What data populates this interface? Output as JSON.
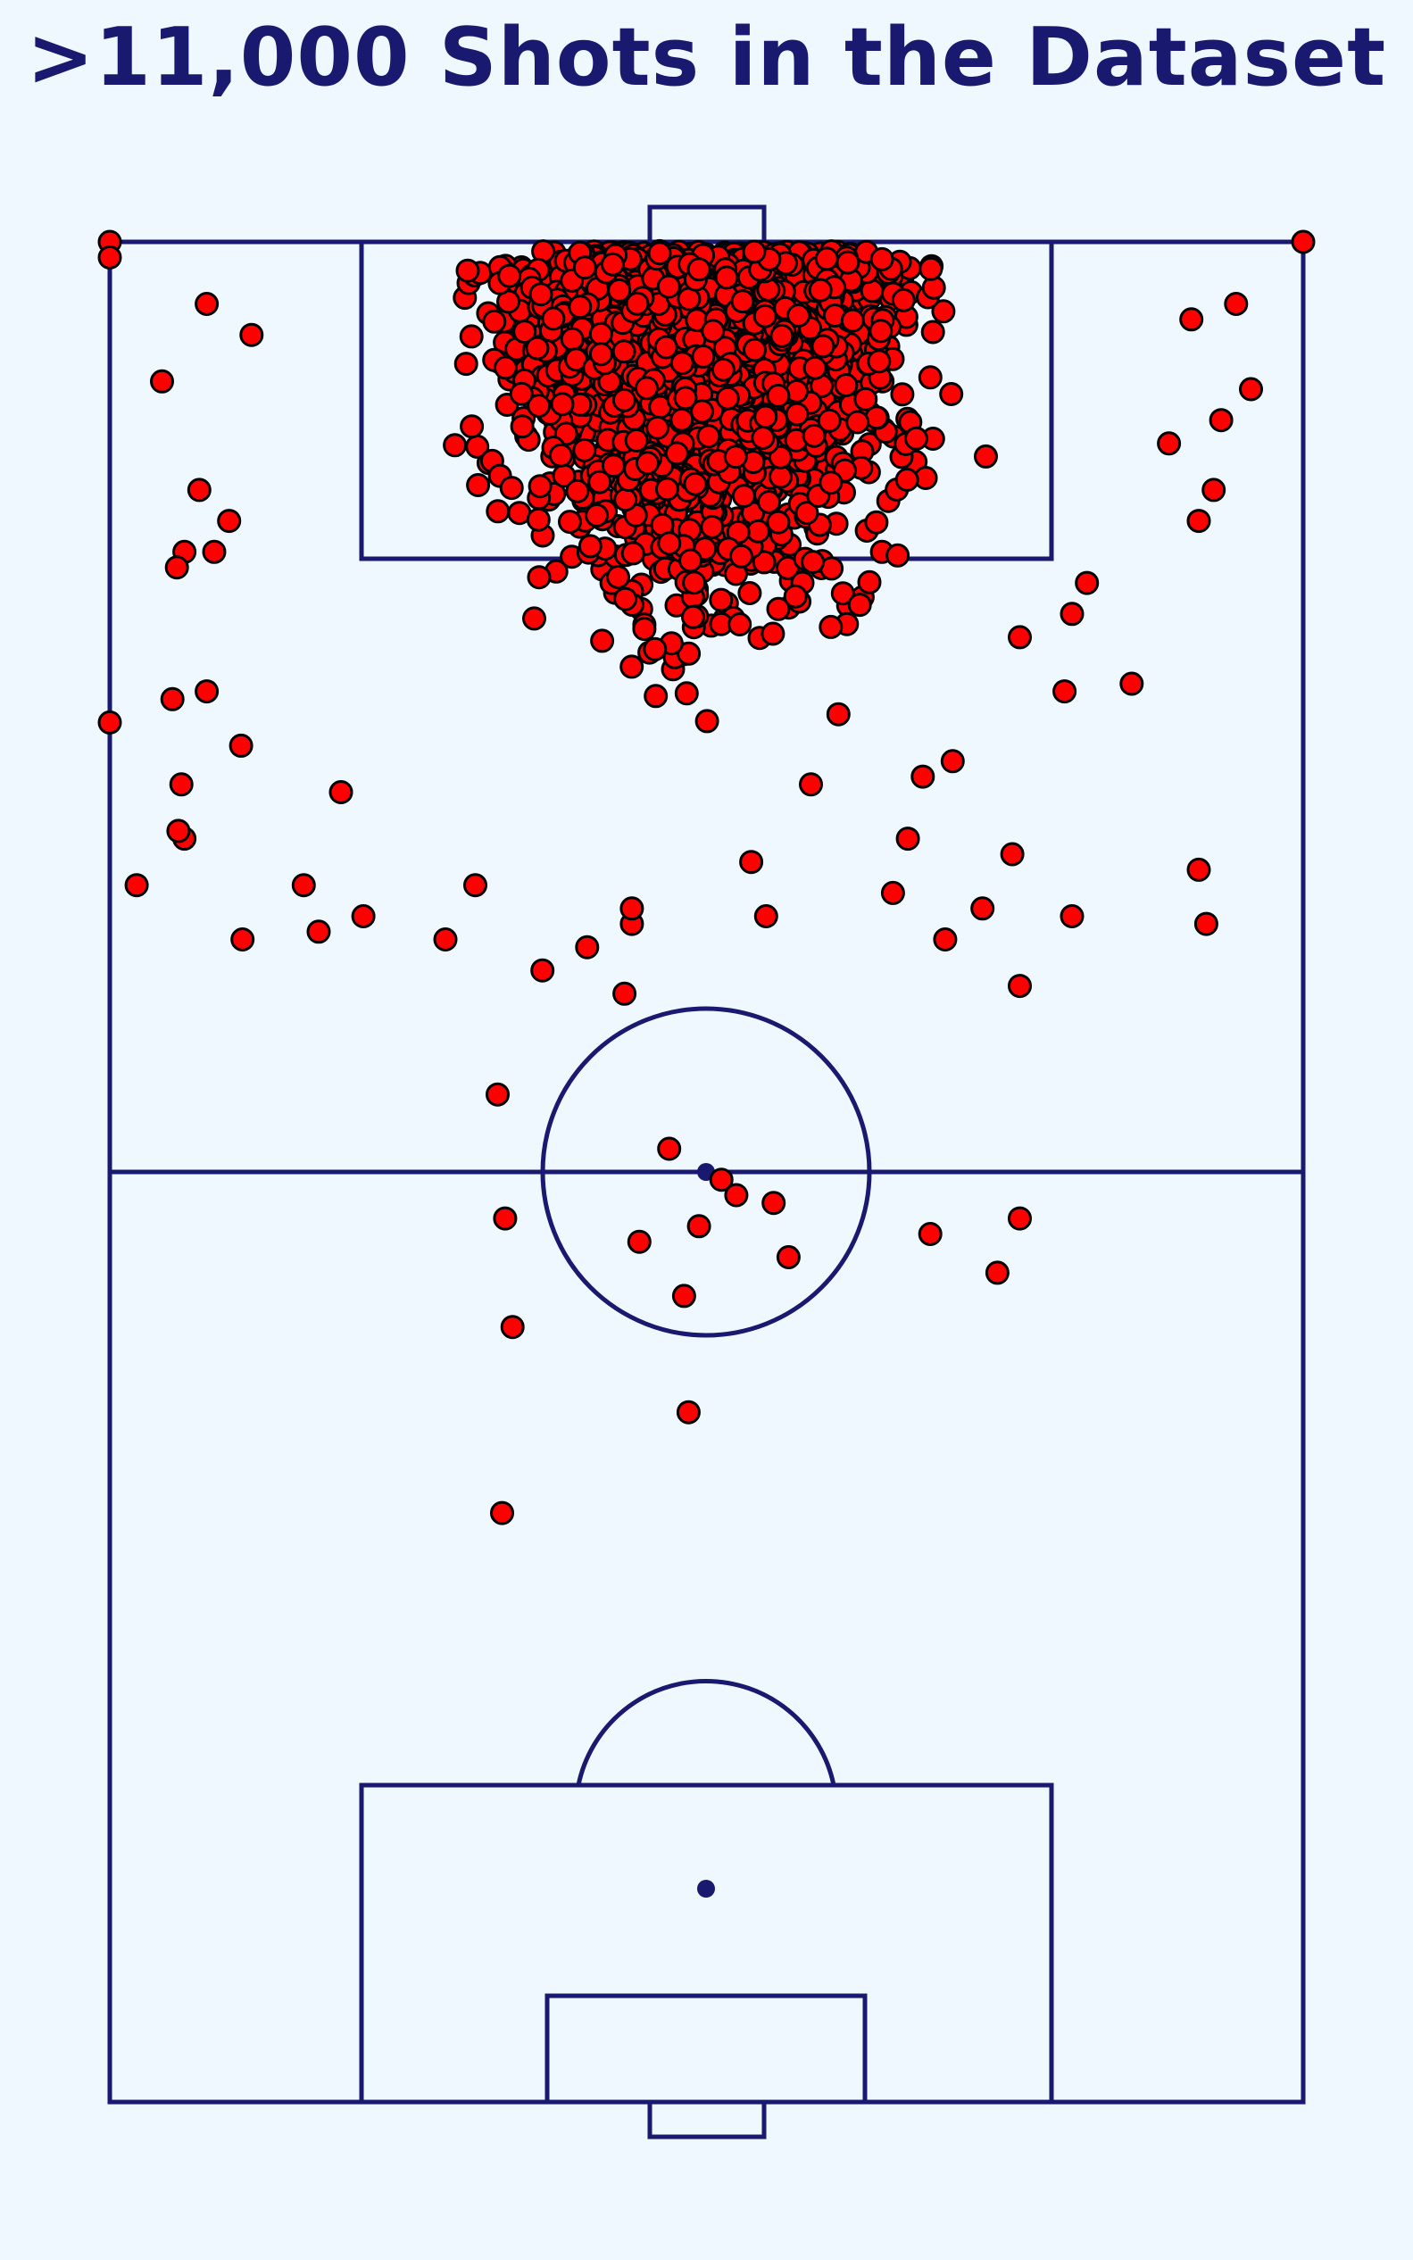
{
  "title": ">11,000 Shots in the Dataset",
  "colors": {
    "background": "#f0f8ff",
    "pitch_lines": "#191970",
    "shot_fill": "#ff0000",
    "shot_edge": "#000000",
    "title": "#191970"
  },
  "chart_data": {
    "type": "scatter",
    "title": ">11,000 Shots in the Dataset",
    "xlabel": "",
    "ylabel": "",
    "xlim": [
      0,
      80
    ],
    "ylim": [
      0,
      120
    ],
    "orientation": "vertical half-pitch view, attacking goal at top",
    "grid": false,
    "legend": "none",
    "count_label": ">11,000",
    "dense_region": {
      "x_range": [
        16,
        64
      ],
      "y_range": [
        80,
        120
      ]
    },
    "sample_points": [
      {
        "x": 0,
        "y": 120
      },
      {
        "x": 0,
        "y": 119
      },
      {
        "x": 80,
        "y": 120
      },
      {
        "x": 0,
        "y": 89
      },
      {
        "x": 6.5,
        "y": 116
      },
      {
        "x": 3.5,
        "y": 111
      },
      {
        "x": 9.5,
        "y": 114
      },
      {
        "x": 6,
        "y": 104
      },
      {
        "x": 8,
        "y": 102
      },
      {
        "x": 5,
        "y": 100
      },
      {
        "x": 4.5,
        "y": 99
      },
      {
        "x": 7,
        "y": 100
      },
      {
        "x": 6.5,
        "y": 91
      },
      {
        "x": 8.8,
        "y": 87.5
      },
      {
        "x": 4.8,
        "y": 85
      },
      {
        "x": 4.2,
        "y": 90.5
      },
      {
        "x": 5,
        "y": 81.5
      },
      {
        "x": 4.6,
        "y": 82
      },
      {
        "x": 1.8,
        "y": 78.5
      },
      {
        "x": 13,
        "y": 78.5
      },
      {
        "x": 14,
        "y": 75.5
      },
      {
        "x": 8.9,
        "y": 75
      },
      {
        "x": 15.5,
        "y": 84.5
      },
      {
        "x": 17,
        "y": 76.5
      },
      {
        "x": 24.5,
        "y": 78.5
      },
      {
        "x": 29,
        "y": 73
      },
      {
        "x": 22.5,
        "y": 75
      },
      {
        "x": 35,
        "y": 76
      },
      {
        "x": 32,
        "y": 74.5
      },
      {
        "x": 35,
        "y": 77
      },
      {
        "x": 34.5,
        "y": 71.5
      },
      {
        "x": 37.5,
        "y": 61.5
      },
      {
        "x": 41,
        "y": 59.5
      },
      {
        "x": 39.5,
        "y": 56.5
      },
      {
        "x": 42,
        "y": 58.5
      },
      {
        "x": 44.5,
        "y": 58
      },
      {
        "x": 26,
        "y": 65
      },
      {
        "x": 26.5,
        "y": 57
      },
      {
        "x": 35.5,
        "y": 55.5
      },
      {
        "x": 45.5,
        "y": 54.5
      },
      {
        "x": 38.5,
        "y": 52
      },
      {
        "x": 27,
        "y": 50
      },
      {
        "x": 38.8,
        "y": 44.5
      },
      {
        "x": 26.3,
        "y": 38
      },
      {
        "x": 43,
        "y": 80
      },
      {
        "x": 44,
        "y": 76.5
      },
      {
        "x": 47,
        "y": 85
      },
      {
        "x": 53.5,
        "y": 81.5
      },
      {
        "x": 56.5,
        "y": 86.5
      },
      {
        "x": 54.5,
        "y": 85.5
      },
      {
        "x": 60.5,
        "y": 80.5
      },
      {
        "x": 56,
        "y": 75
      },
      {
        "x": 52.5,
        "y": 78
      },
      {
        "x": 58.5,
        "y": 77
      },
      {
        "x": 64.5,
        "y": 76.5
      },
      {
        "x": 73,
        "y": 79.5
      },
      {
        "x": 73.5,
        "y": 76
      },
      {
        "x": 61,
        "y": 72
      },
      {
        "x": 55,
        "y": 56
      },
      {
        "x": 61,
        "y": 57
      },
      {
        "x": 59.5,
        "y": 53.5
      },
      {
        "x": 64,
        "y": 91
      },
      {
        "x": 61,
        "y": 94.5
      },
      {
        "x": 64.5,
        "y": 96
      },
      {
        "x": 68.5,
        "y": 91.5
      },
      {
        "x": 65.5,
        "y": 98
      },
      {
        "x": 73,
        "y": 102
      },
      {
        "x": 74,
        "y": 104
      },
      {
        "x": 71,
        "y": 107
      },
      {
        "x": 74.5,
        "y": 108.5
      },
      {
        "x": 76.5,
        "y": 110.5
      },
      {
        "x": 75.5,
        "y": 116
      },
      {
        "x": 72.5,
        "y": 115
      }
    ]
  }
}
